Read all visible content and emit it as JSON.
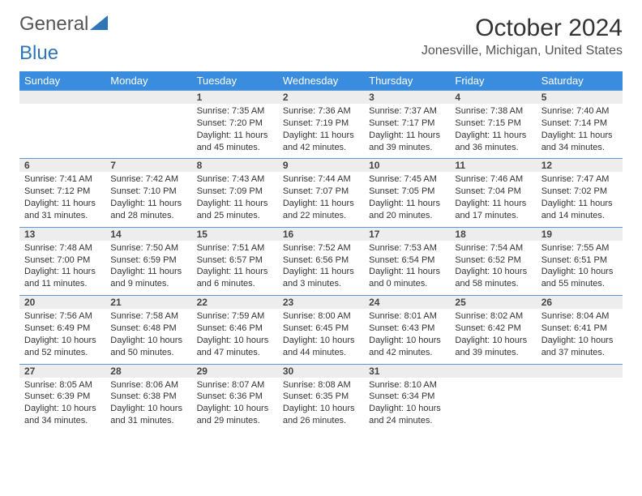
{
  "brand": {
    "part1": "General",
    "part2": "Blue"
  },
  "title": "October 2024",
  "location": "Jonesville, Michigan, United States",
  "colors": {
    "header_bg": "#3a8dde",
    "header_text": "#ffffff",
    "daynum_bg": "#ededed",
    "rule": "#5b9bd5",
    "brand_blue": "#2e75b6",
    "text": "#333333"
  },
  "dow": [
    "Sunday",
    "Monday",
    "Tuesday",
    "Wednesday",
    "Thursday",
    "Friday",
    "Saturday"
  ],
  "weeks": [
    [
      null,
      null,
      {
        "n": "1",
        "sr": "Sunrise: 7:35 AM",
        "ss": "Sunset: 7:20 PM",
        "dl1": "Daylight: 11 hours",
        "dl2": "and 45 minutes."
      },
      {
        "n": "2",
        "sr": "Sunrise: 7:36 AM",
        "ss": "Sunset: 7:19 PM",
        "dl1": "Daylight: 11 hours",
        "dl2": "and 42 minutes."
      },
      {
        "n": "3",
        "sr": "Sunrise: 7:37 AM",
        "ss": "Sunset: 7:17 PM",
        "dl1": "Daylight: 11 hours",
        "dl2": "and 39 minutes."
      },
      {
        "n": "4",
        "sr": "Sunrise: 7:38 AM",
        "ss": "Sunset: 7:15 PM",
        "dl1": "Daylight: 11 hours",
        "dl2": "and 36 minutes."
      },
      {
        "n": "5",
        "sr": "Sunrise: 7:40 AM",
        "ss": "Sunset: 7:14 PM",
        "dl1": "Daylight: 11 hours",
        "dl2": "and 34 minutes."
      }
    ],
    [
      {
        "n": "6",
        "sr": "Sunrise: 7:41 AM",
        "ss": "Sunset: 7:12 PM",
        "dl1": "Daylight: 11 hours",
        "dl2": "and 31 minutes."
      },
      {
        "n": "7",
        "sr": "Sunrise: 7:42 AM",
        "ss": "Sunset: 7:10 PM",
        "dl1": "Daylight: 11 hours",
        "dl2": "and 28 minutes."
      },
      {
        "n": "8",
        "sr": "Sunrise: 7:43 AM",
        "ss": "Sunset: 7:09 PM",
        "dl1": "Daylight: 11 hours",
        "dl2": "and 25 minutes."
      },
      {
        "n": "9",
        "sr": "Sunrise: 7:44 AM",
        "ss": "Sunset: 7:07 PM",
        "dl1": "Daylight: 11 hours",
        "dl2": "and 22 minutes."
      },
      {
        "n": "10",
        "sr": "Sunrise: 7:45 AM",
        "ss": "Sunset: 7:05 PM",
        "dl1": "Daylight: 11 hours",
        "dl2": "and 20 minutes."
      },
      {
        "n": "11",
        "sr": "Sunrise: 7:46 AM",
        "ss": "Sunset: 7:04 PM",
        "dl1": "Daylight: 11 hours",
        "dl2": "and 17 minutes."
      },
      {
        "n": "12",
        "sr": "Sunrise: 7:47 AM",
        "ss": "Sunset: 7:02 PM",
        "dl1": "Daylight: 11 hours",
        "dl2": "and 14 minutes."
      }
    ],
    [
      {
        "n": "13",
        "sr": "Sunrise: 7:48 AM",
        "ss": "Sunset: 7:00 PM",
        "dl1": "Daylight: 11 hours",
        "dl2": "and 11 minutes."
      },
      {
        "n": "14",
        "sr": "Sunrise: 7:50 AM",
        "ss": "Sunset: 6:59 PM",
        "dl1": "Daylight: 11 hours",
        "dl2": "and 9 minutes."
      },
      {
        "n": "15",
        "sr": "Sunrise: 7:51 AM",
        "ss": "Sunset: 6:57 PM",
        "dl1": "Daylight: 11 hours",
        "dl2": "and 6 minutes."
      },
      {
        "n": "16",
        "sr": "Sunrise: 7:52 AM",
        "ss": "Sunset: 6:56 PM",
        "dl1": "Daylight: 11 hours",
        "dl2": "and 3 minutes."
      },
      {
        "n": "17",
        "sr": "Sunrise: 7:53 AM",
        "ss": "Sunset: 6:54 PM",
        "dl1": "Daylight: 11 hours",
        "dl2": "and 0 minutes."
      },
      {
        "n": "18",
        "sr": "Sunrise: 7:54 AM",
        "ss": "Sunset: 6:52 PM",
        "dl1": "Daylight: 10 hours",
        "dl2": "and 58 minutes."
      },
      {
        "n": "19",
        "sr": "Sunrise: 7:55 AM",
        "ss": "Sunset: 6:51 PM",
        "dl1": "Daylight: 10 hours",
        "dl2": "and 55 minutes."
      }
    ],
    [
      {
        "n": "20",
        "sr": "Sunrise: 7:56 AM",
        "ss": "Sunset: 6:49 PM",
        "dl1": "Daylight: 10 hours",
        "dl2": "and 52 minutes."
      },
      {
        "n": "21",
        "sr": "Sunrise: 7:58 AM",
        "ss": "Sunset: 6:48 PM",
        "dl1": "Daylight: 10 hours",
        "dl2": "and 50 minutes."
      },
      {
        "n": "22",
        "sr": "Sunrise: 7:59 AM",
        "ss": "Sunset: 6:46 PM",
        "dl1": "Daylight: 10 hours",
        "dl2": "and 47 minutes."
      },
      {
        "n": "23",
        "sr": "Sunrise: 8:00 AM",
        "ss": "Sunset: 6:45 PM",
        "dl1": "Daylight: 10 hours",
        "dl2": "and 44 minutes."
      },
      {
        "n": "24",
        "sr": "Sunrise: 8:01 AM",
        "ss": "Sunset: 6:43 PM",
        "dl1": "Daylight: 10 hours",
        "dl2": "and 42 minutes."
      },
      {
        "n": "25",
        "sr": "Sunrise: 8:02 AM",
        "ss": "Sunset: 6:42 PM",
        "dl1": "Daylight: 10 hours",
        "dl2": "and 39 minutes."
      },
      {
        "n": "26",
        "sr": "Sunrise: 8:04 AM",
        "ss": "Sunset: 6:41 PM",
        "dl1": "Daylight: 10 hours",
        "dl2": "and 37 minutes."
      }
    ],
    [
      {
        "n": "27",
        "sr": "Sunrise: 8:05 AM",
        "ss": "Sunset: 6:39 PM",
        "dl1": "Daylight: 10 hours",
        "dl2": "and 34 minutes."
      },
      {
        "n": "28",
        "sr": "Sunrise: 8:06 AM",
        "ss": "Sunset: 6:38 PM",
        "dl1": "Daylight: 10 hours",
        "dl2": "and 31 minutes."
      },
      {
        "n": "29",
        "sr": "Sunrise: 8:07 AM",
        "ss": "Sunset: 6:36 PM",
        "dl1": "Daylight: 10 hours",
        "dl2": "and 29 minutes."
      },
      {
        "n": "30",
        "sr": "Sunrise: 8:08 AM",
        "ss": "Sunset: 6:35 PM",
        "dl1": "Daylight: 10 hours",
        "dl2": "and 26 minutes."
      },
      {
        "n": "31",
        "sr": "Sunrise: 8:10 AM",
        "ss": "Sunset: 6:34 PM",
        "dl1": "Daylight: 10 hours",
        "dl2": "and 24 minutes."
      },
      null,
      null
    ]
  ]
}
